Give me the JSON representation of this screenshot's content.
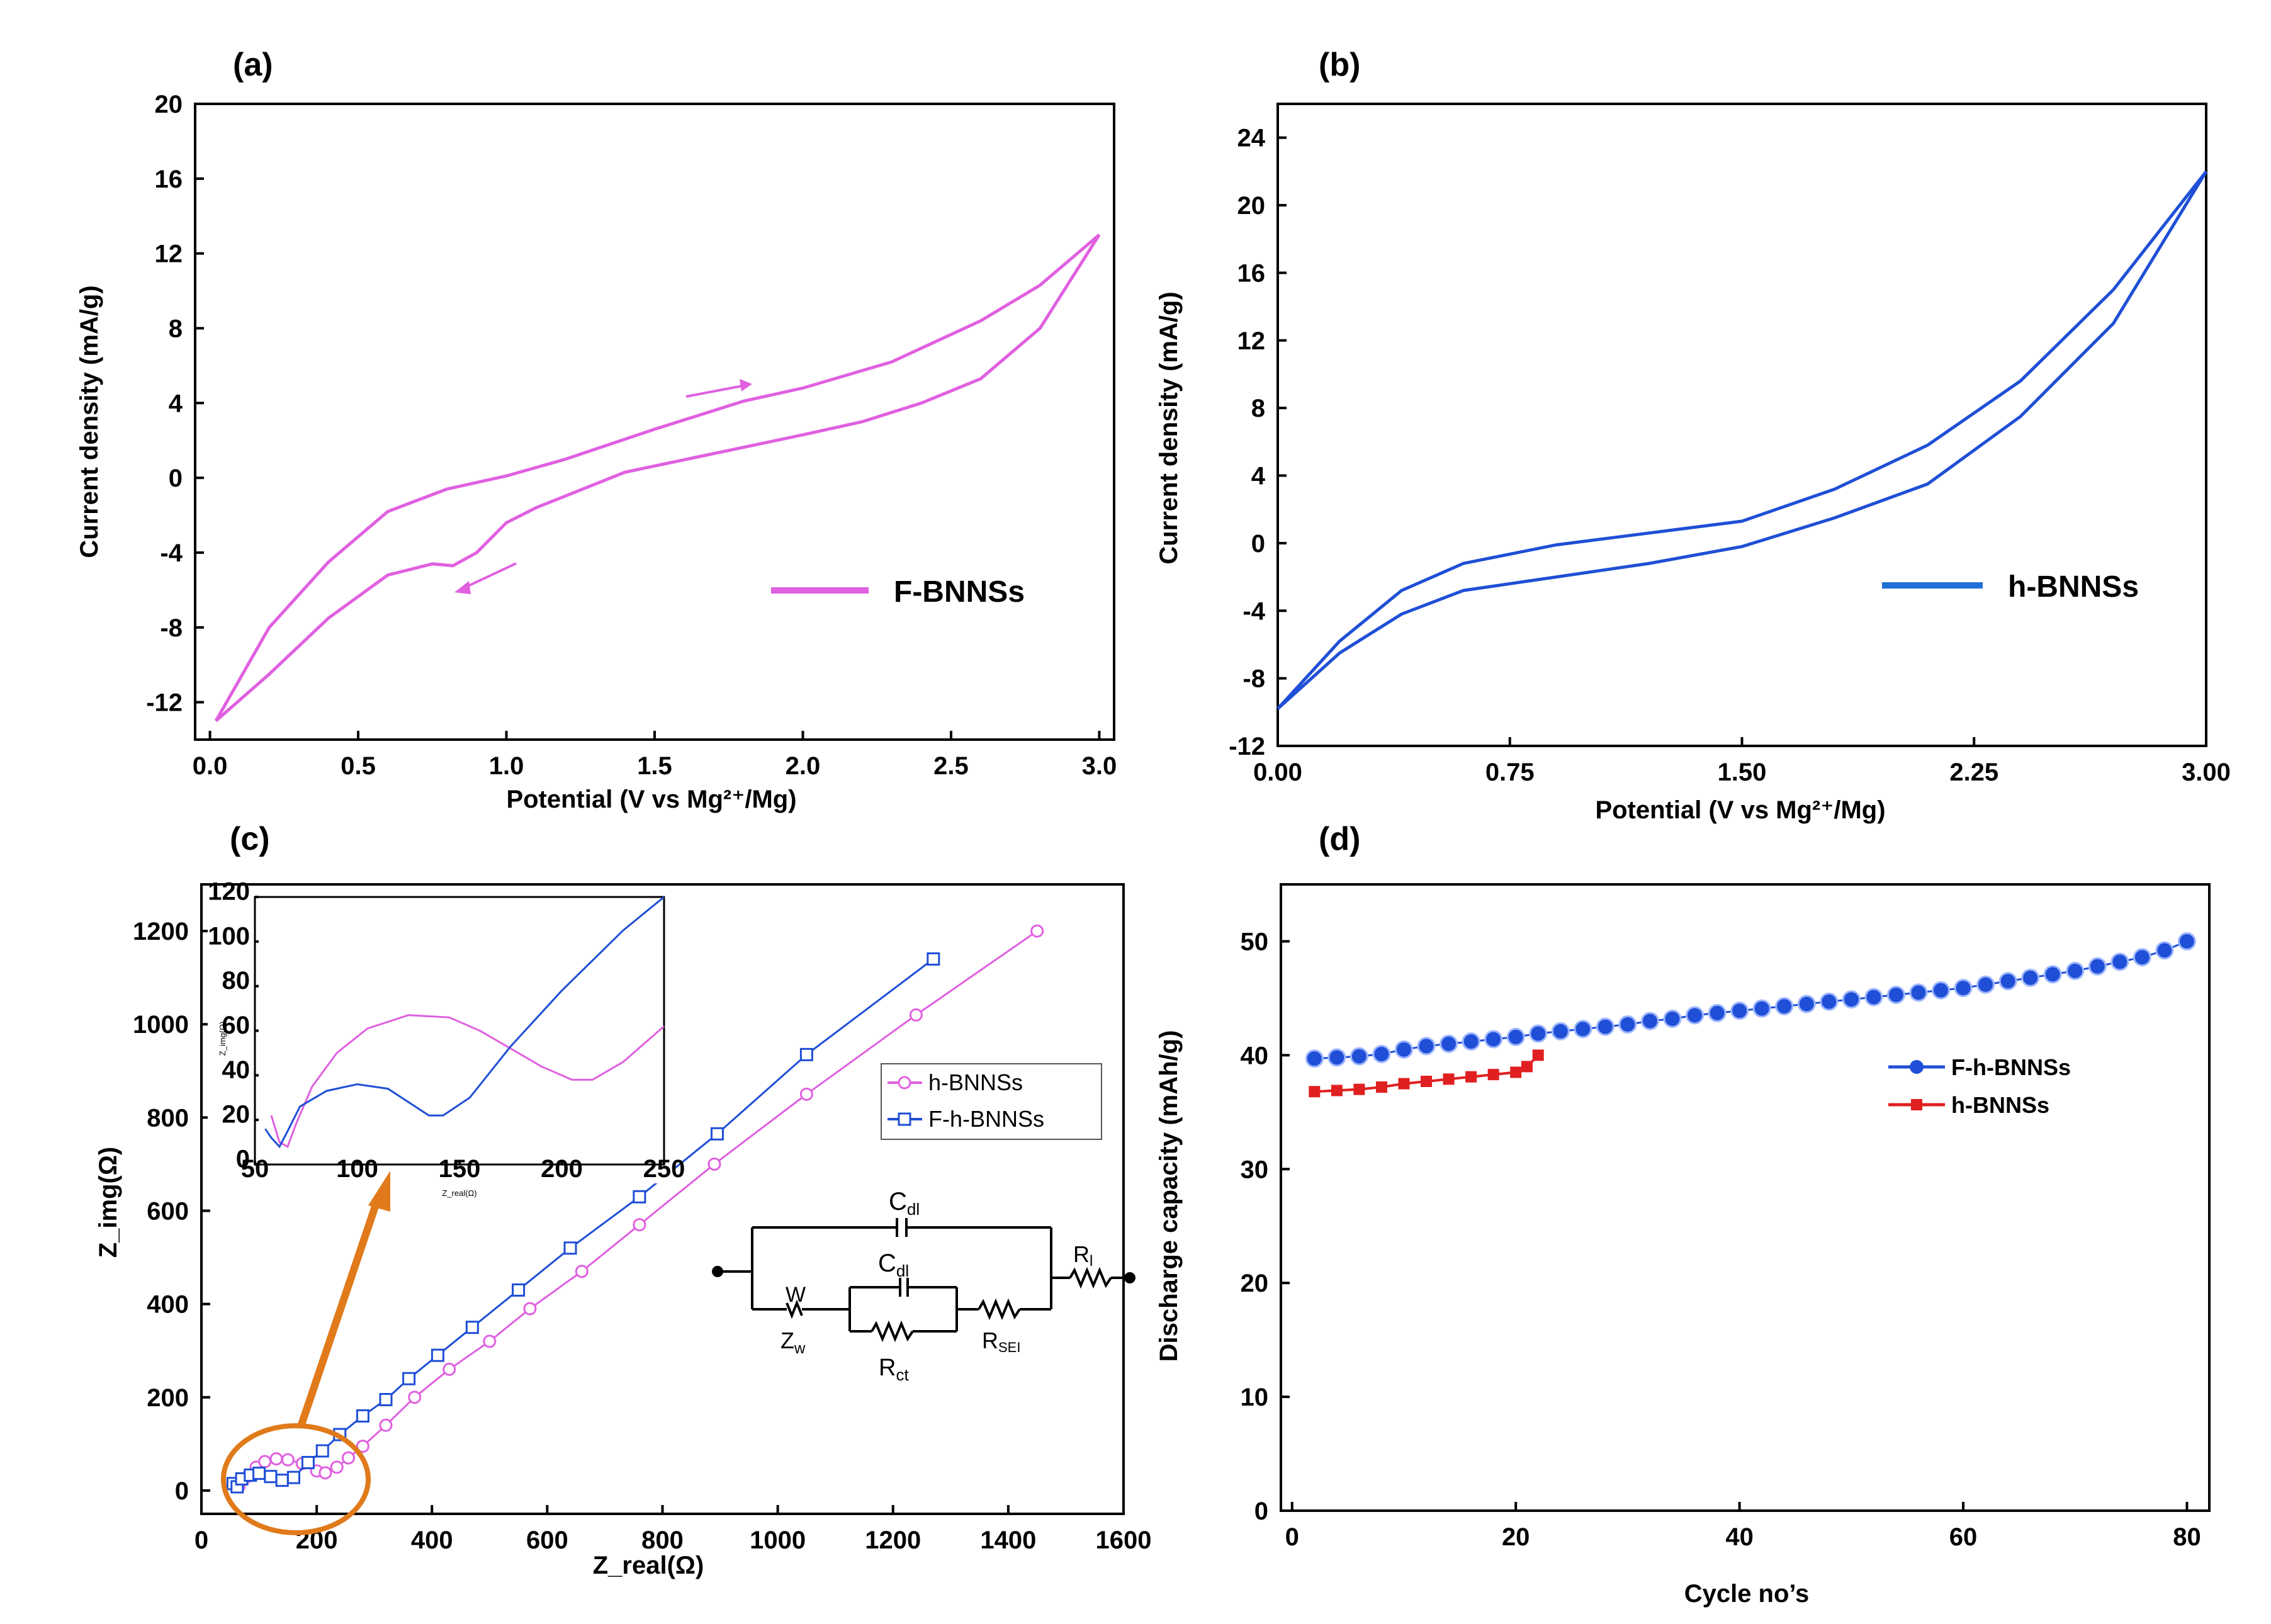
{
  "figure": {
    "panels": {
      "a": {
        "label": "(a)"
      },
      "b": {
        "label": "(b)"
      },
      "c": {
        "label": "(c)"
      },
      "d": {
        "label": "(d)"
      }
    }
  },
  "colors": {
    "magenta": "#e060e0",
    "blue": "#1f4fd6",
    "red": "#e02020",
    "orange": "#e07a1a"
  },
  "chart_data": [
    {
      "id": "a",
      "type": "line",
      "title": "",
      "xlabel": "Potential (V vs Mg²⁺/Mg)",
      "ylabel": "Current density (mA/g)",
      "xlim": [
        0.0,
        3.0
      ],
      "ylim": [
        -14,
        20
      ],
      "xticks": [
        "0.0",
        "0.5",
        "1.0",
        "1.5",
        "2.0",
        "2.5",
        "3.0"
      ],
      "yticks": [
        "-12",
        "-8",
        "-4",
        "0",
        "4",
        "8",
        "12",
        "16",
        "20"
      ],
      "legend": [
        "F-BNNSs"
      ],
      "series": [
        {
          "name": "F-BNNSs anodic",
          "x": [
            0.02,
            0.2,
            0.4,
            0.6,
            0.8,
            1.0,
            1.2,
            1.5,
            1.8,
            2.0,
            2.3,
            2.6,
            2.8,
            3.0
          ],
          "y": [
            -13.0,
            -8.0,
            -4.5,
            -1.8,
            -0.6,
            0.1,
            1.0,
            2.6,
            4.1,
            4.8,
            6.2,
            8.4,
            10.3,
            13.0
          ]
        },
        {
          "name": "F-BNNSs cathodic",
          "x": [
            3.0,
            2.8,
            2.6,
            2.4,
            2.2,
            2.0,
            1.7,
            1.4,
            1.1,
            1.0,
            0.9,
            0.82,
            0.75,
            0.6,
            0.4,
            0.2,
            0.02
          ],
          "y": [
            13.0,
            8.0,
            5.3,
            4.0,
            3.0,
            2.3,
            1.3,
            0.3,
            -1.6,
            -2.4,
            -4.0,
            -4.7,
            -4.6,
            -5.2,
            -7.5,
            -10.5,
            -13.0
          ]
        }
      ]
    },
    {
      "id": "b",
      "type": "line",
      "title": "",
      "xlabel": "Potential (V vs Mg²⁺/Mg)",
      "ylabel": "Current density (mA/g)",
      "xlim": [
        0.0,
        3.0
      ],
      "ylim": [
        -12,
        26
      ],
      "xticks": [
        "0.00",
        "0.75",
        "1.50",
        "2.25",
        "3.00"
      ],
      "yticks": [
        "-12",
        "-8",
        "-4",
        "0",
        "4",
        "8",
        "12",
        "16",
        "20",
        "24"
      ],
      "legend": [
        "h-BNNSs"
      ],
      "series": [
        {
          "name": "h-BNNSs anodic",
          "x": [
            0.0,
            0.2,
            0.4,
            0.6,
            0.9,
            1.2,
            1.5,
            1.8,
            2.1,
            2.4,
            2.7,
            3.0
          ],
          "y": [
            -9.8,
            -5.8,
            -2.8,
            -1.2,
            -0.1,
            0.6,
            1.3,
            3.2,
            5.8,
            9.6,
            15.0,
            22.0
          ]
        },
        {
          "name": "h-BNNSs cathodic",
          "x": [
            3.0,
            2.7,
            2.4,
            2.1,
            1.8,
            1.5,
            1.2,
            0.9,
            0.6,
            0.4,
            0.2,
            0.0
          ],
          "y": [
            22.0,
            13.0,
            7.5,
            3.5,
            1.5,
            -0.2,
            -1.2,
            -2.0,
            -2.8,
            -4.2,
            -6.5,
            -9.8
          ]
        }
      ]
    },
    {
      "id": "c",
      "type": "scatter",
      "title": "",
      "xlabel": "Z_real(Ω)",
      "ylabel": "Z_img(Ω)",
      "xlim": [
        0,
        1600
      ],
      "ylim": [
        -50,
        1300
      ],
      "xticks": [
        "0",
        "200",
        "400",
        "600",
        "800",
        "1000",
        "1200",
        "1400",
        "1600"
      ],
      "yticks": [
        "0",
        "200",
        "400",
        "600",
        "800",
        "1000",
        "1200"
      ],
      "legend": [
        "h-BNNSs",
        "F-h-BNNSs"
      ],
      "series": [
        {
          "name": "h-BNNSs",
          "x": [
            60,
            65,
            80,
            95,
            110,
            130,
            150,
            175,
            200,
            215,
            235,
            255,
            280,
            320,
            370,
            430,
            500,
            570,
            660,
            760,
            890,
            1050,
            1240,
            1450
          ],
          "y": [
            15,
            8,
            30,
            50,
            62,
            68,
            66,
            58,
            42,
            38,
            50,
            70,
            95,
            140,
            200,
            260,
            320,
            390,
            470,
            570,
            700,
            850,
            1020,
            1200
          ]
        },
        {
          "name": "F-h-BNNSs",
          "x": [
            55,
            62,
            70,
            85,
            100,
            120,
            140,
            160,
            185,
            210,
            240,
            280,
            320,
            360,
            410,
            470,
            550,
            640,
            760,
            895,
            1050,
            1270
          ],
          "y": [
            15,
            8,
            25,
            33,
            37,
            30,
            22,
            28,
            60,
            85,
            120,
            160,
            195,
            240,
            290,
            350,
            430,
            520,
            630,
            765,
            935,
            1140
          ]
        }
      ],
      "inset": {
        "xlim": [
          50,
          250
        ],
        "ylim": [
          0,
          120
        ],
        "xticks": [
          "50",
          "100",
          "150",
          "200",
          "250"
        ],
        "yticks": [
          "0",
          "20",
          "40",
          "60",
          "80",
          "100",
          "120"
        ],
        "xlabel": "Z_real(Ω)",
        "ylabel": "Z_img(Ω)",
        "series": [
          {
            "name": "h-BNNSs",
            "x": [
              58,
              62,
              66,
              70,
              78,
              90,
              105,
              125,
              145,
              160,
              175,
              190,
              205,
              215,
              230,
              250
            ],
            "y": [
              22,
              10,
              8,
              18,
              35,
              50,
              61,
              67,
              66,
              60,
              52,
              44,
              38,
              38,
              46,
              62
            ]
          },
          {
            "name": "F-h-BNNSs",
            "x": [
              55,
              58,
              62,
              66,
              72,
              85,
              100,
              115,
              125,
              135,
              142,
              155,
              175,
              200,
              230,
              250
            ],
            "y": [
              16,
              12,
              8,
              15,
              26,
              33,
              36,
              34,
              28,
              22,
              22,
              30,
              53,
              78,
              105,
              120
            ]
          }
        ]
      },
      "circuit_labels": {
        "cdl_top": "C",
        "cdl_top_sub": "dl",
        "cdl_inner": "C",
        "cdl_inner_sub": "dl",
        "w": "W",
        "zw": "Z",
        "zw_sub": "w",
        "rct": "R",
        "rct_sub": "ct",
        "rsei": "R",
        "rsei_sub": "SEI",
        "rl": "R",
        "rl_sub": "l"
      }
    },
    {
      "id": "d",
      "type": "scatter",
      "title": "",
      "xlabel": "Cycle no’s",
      "ylabel": "Discharge capacity (mAh/g)",
      "xlim": [
        -1,
        82
      ],
      "ylim": [
        0,
        55
      ],
      "xticks": [
        "0",
        "20",
        "40",
        "60",
        "80"
      ],
      "yticks": [
        "0",
        "10",
        "20",
        "30",
        "40",
        "50"
      ],
      "legend": [
        "F-h-BNNSs",
        "h-BNNSs"
      ],
      "series": [
        {
          "name": "F-h-BNNSs",
          "x": [
            2,
            4,
            6,
            8,
            10,
            12,
            14,
            16,
            18,
            20,
            22,
            24,
            26,
            28,
            30,
            32,
            34,
            36,
            38,
            40,
            42,
            44,
            46,
            48,
            50,
            52,
            54,
            56,
            58,
            60,
            62,
            64,
            66,
            68,
            70,
            72,
            74,
            76,
            78,
            80
          ],
          "y": [
            39.7,
            39.8,
            39.9,
            40.1,
            40.5,
            40.8,
            41.0,
            41.2,
            41.4,
            41.6,
            41.9,
            42.1,
            42.3,
            42.5,
            42.7,
            43.0,
            43.2,
            43.5,
            43.7,
            43.9,
            44.1,
            44.3,
            44.5,
            44.7,
            44.9,
            45.1,
            45.3,
            45.5,
            45.7,
            45.9,
            46.2,
            46.5,
            46.8,
            47.1,
            47.4,
            47.8,
            48.2,
            48.6,
            49.2,
            50.0
          ]
        },
        {
          "name": "h-BNNSs",
          "x": [
            2,
            4,
            6,
            8,
            10,
            12,
            14,
            16,
            18,
            20,
            21,
            22
          ],
          "y": [
            36.8,
            36.9,
            37.0,
            37.2,
            37.5,
            37.7,
            37.9,
            38.1,
            38.3,
            38.5,
            39.0,
            40.0
          ]
        }
      ]
    }
  ]
}
